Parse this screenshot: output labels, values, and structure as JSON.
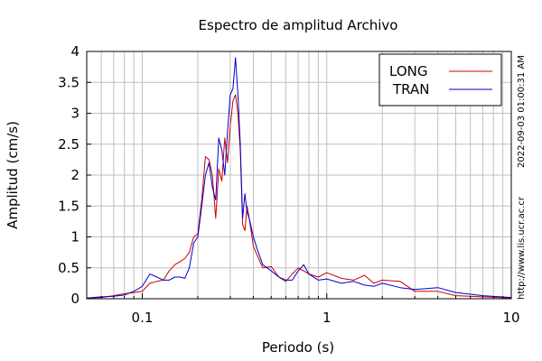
{
  "chart_data": {
    "type": "line",
    "title": "Espectro de amplitud Archivo",
    "xlabel": "Periodo (s)",
    "ylabel": "Amplitud (cm/s)",
    "x_scale": "log",
    "xlim": [
      0.05,
      10
    ],
    "ylim": [
      0,
      4
    ],
    "x_ticks": [
      {
        "value": 0.1,
        "label": "0.1"
      },
      {
        "value": 1,
        "label": "1"
      },
      {
        "value": 10,
        "label": "10"
      }
    ],
    "y_ticks": [
      {
        "value": 0,
        "label": "0"
      },
      {
        "value": 0.5,
        "label": "0.5"
      },
      {
        "value": 1,
        "label": "1"
      },
      {
        "value": 1.5,
        "label": "1.5"
      },
      {
        "value": 2,
        "label": "2"
      },
      {
        "value": 2.5,
        "label": "2.5"
      },
      {
        "value": 3,
        "label": "3"
      },
      {
        "value": 3.5,
        "label": "3.5"
      },
      {
        "value": 4,
        "label": "4"
      }
    ],
    "grid": true,
    "legend_position": "top-right",
    "series": [
      {
        "name": "LONG",
        "color": "#cc0000",
        "x": [
          0.05,
          0.06,
          0.07,
          0.08,
          0.09,
          0.1,
          0.11,
          0.12,
          0.13,
          0.14,
          0.15,
          0.16,
          0.17,
          0.18,
          0.19,
          0.2,
          0.21,
          0.22,
          0.23,
          0.24,
          0.25,
          0.26,
          0.27,
          0.28,
          0.29,
          0.3,
          0.31,
          0.32,
          0.33,
          0.34,
          0.35,
          0.36,
          0.37,
          0.38,
          0.4,
          0.42,
          0.45,
          0.5,
          0.55,
          0.6,
          0.65,
          0.7,
          0.75,
          0.8,
          0.9,
          1.0,
          1.2,
          1.4,
          1.6,
          1.8,
          2.0,
          2.5,
          3.0,
          4.0,
          5.0,
          7.0,
          10.0
        ],
        "y": [
          0.01,
          0.02,
          0.05,
          0.08,
          0.1,
          0.12,
          0.25,
          0.28,
          0.3,
          0.45,
          0.55,
          0.6,
          0.65,
          0.75,
          1.0,
          1.05,
          1.6,
          2.3,
          2.25,
          2.0,
          1.3,
          2.1,
          1.9,
          2.6,
          2.2,
          2.8,
          3.2,
          3.3,
          3.0,
          2.4,
          1.2,
          1.1,
          1.5,
          1.3,
          0.85,
          0.7,
          0.5,
          0.52,
          0.35,
          0.28,
          0.4,
          0.5,
          0.45,
          0.4,
          0.35,
          0.42,
          0.33,
          0.3,
          0.38,
          0.25,
          0.3,
          0.28,
          0.12,
          0.12,
          0.05,
          0.03,
          0.01
        ]
      },
      {
        "name": "TRAN",
        "color": "#0000cc",
        "x": [
          0.05,
          0.06,
          0.07,
          0.08,
          0.09,
          0.1,
          0.11,
          0.12,
          0.13,
          0.14,
          0.15,
          0.16,
          0.17,
          0.18,
          0.19,
          0.2,
          0.21,
          0.22,
          0.23,
          0.24,
          0.25,
          0.26,
          0.27,
          0.28,
          0.29,
          0.3,
          0.31,
          0.32,
          0.33,
          0.34,
          0.35,
          0.36,
          0.37,
          0.38,
          0.4,
          0.42,
          0.45,
          0.5,
          0.55,
          0.6,
          0.65,
          0.7,
          0.75,
          0.8,
          0.9,
          1.0,
          1.2,
          1.4,
          1.6,
          1.8,
          2.0,
          2.5,
          3.0,
          4.0,
          5.0,
          7.0,
          10.0
        ],
        "y": [
          0.01,
          0.03,
          0.04,
          0.06,
          0.12,
          0.2,
          0.4,
          0.35,
          0.3,
          0.3,
          0.35,
          0.35,
          0.33,
          0.5,
          0.9,
          1.0,
          1.5,
          2.0,
          2.2,
          1.8,
          1.6,
          2.6,
          2.4,
          2.0,
          2.7,
          3.3,
          3.4,
          3.9,
          3.3,
          2.5,
          1.3,
          1.7,
          1.4,
          1.3,
          1.0,
          0.8,
          0.55,
          0.45,
          0.35,
          0.3,
          0.3,
          0.45,
          0.55,
          0.4,
          0.3,
          0.32,
          0.25,
          0.28,
          0.22,
          0.2,
          0.25,
          0.18,
          0.15,
          0.18,
          0.1,
          0.05,
          0.02
        ]
      }
    ]
  },
  "side_timestamp": "2022-09-03 01:00:31 AM",
  "side_url": "http://www.lis.ucr.ac.cr"
}
